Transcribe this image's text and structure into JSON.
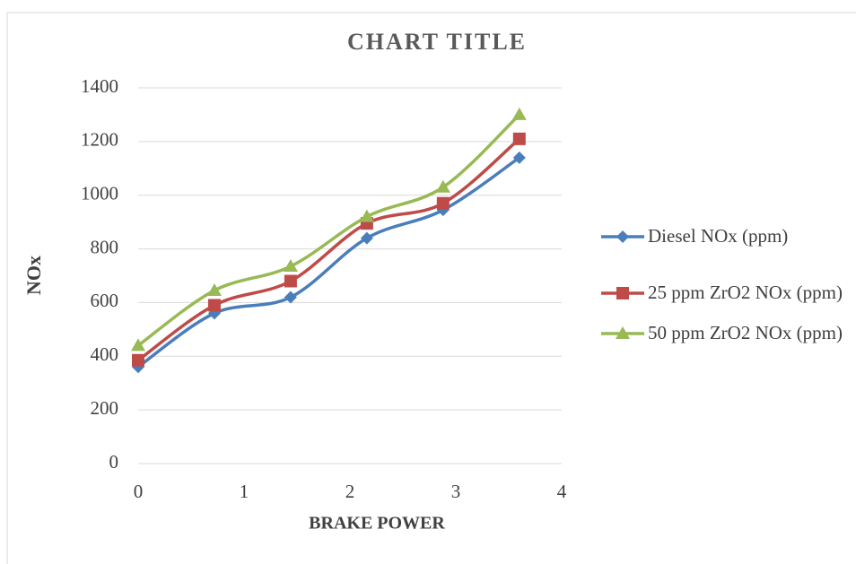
{
  "chart_data": {
    "type": "line",
    "title": "CHART TITLE",
    "x_label": "BRAKE POWER",
    "y_label": "NOx",
    "x": [
      0,
      0.72,
      1.44,
      2.16,
      2.88,
      3.6
    ],
    "series": [
      {
        "name": "Diesel NOx (ppm)",
        "color": "#4a7ebb",
        "marker": "diamond",
        "values": [
          360,
          560,
          620,
          840,
          945,
          1140
        ]
      },
      {
        "name": "25 ppm ZrO2  NOx (ppm)",
        "color": "#be4b48",
        "marker": "square",
        "values": [
          385,
          590,
          680,
          895,
          970,
          1210
        ]
      },
      {
        "name": "50 ppm ZrO2 NOx (ppm)",
        "color": "#98b954",
        "marker": "triangle",
        "values": [
          440,
          645,
          735,
          920,
          1030,
          1300
        ]
      }
    ],
    "xlim": [
      0,
      4
    ],
    "xticks": [
      0,
      1,
      2,
      3,
      4
    ],
    "ylim": [
      0,
      1400
    ],
    "yticks": [
      0,
      200,
      400,
      600,
      800,
      1000,
      1200,
      1400
    ],
    "grid": true,
    "smooth": true,
    "legend": "right"
  }
}
